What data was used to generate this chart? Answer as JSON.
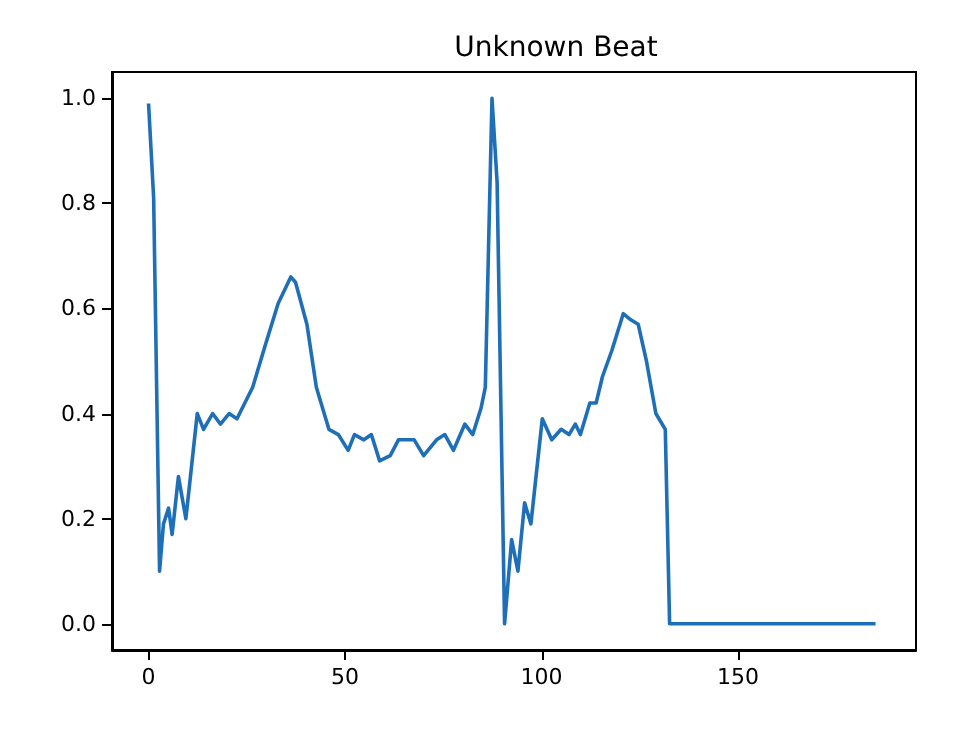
{
  "chart_data": {
    "type": "line",
    "title": "Unknown Beat",
    "x": [
      0,
      1.3,
      2.8,
      3.8,
      5.1,
      6,
      7.6,
      9.5,
      12.4,
      14,
      16.3,
      18.3,
      20.5,
      22.5,
      26.5,
      29.7,
      33,
      36.2,
      37.4,
      40.3,
      42.7,
      45.9,
      48.3,
      50.8,
      52.4,
      54.8,
      56.7,
      58.8,
      61.5,
      63.6,
      67.6,
      70,
      73.3,
      75.4,
      77.6,
      80.5,
      82.5,
      84.6,
      85.7,
      87.4,
      88.7,
      90.6,
      92.4,
      94,
      95.7,
      97.3,
      100.2,
      102.6,
      105,
      107,
      108.6,
      109.9,
      112.3,
      113.9,
      115.5,
      117.9,
      120.8,
      122.4,
      124.6,
      126.7,
      129.1,
      131.5,
      132.6,
      185
    ],
    "series": [
      {
        "color": "#1f6fb8",
        "values": [
          0.99,
          0.81,
          0.1,
          0.19,
          0.22,
          0.17,
          0.28,
          0.2,
          0.4,
          0.37,
          0.4,
          0.38,
          0.4,
          0.39,
          0.45,
          0.53,
          0.61,
          0.66,
          0.65,
          0.57,
          0.45,
          0.37,
          0.36,
          0.33,
          0.36,
          0.35,
          0.36,
          0.31,
          0.32,
          0.35,
          0.35,
          0.32,
          0.35,
          0.36,
          0.33,
          0.38,
          0.36,
          0.41,
          0.45,
          1.0,
          0.84,
          0.0,
          0.16,
          0.1,
          0.23,
          0.19,
          0.39,
          0.35,
          0.37,
          0.36,
          0.38,
          0.36,
          0.42,
          0.42,
          0.47,
          0.52,
          0.59,
          0.58,
          0.57,
          0.5,
          0.4,
          0.37,
          0.0,
          0.0
        ]
      }
    ],
    "xlim": [
      -9.3,
      195.3
    ],
    "ylim": [
      -0.05,
      1.05
    ],
    "xticks": [
      0,
      50,
      100,
      150
    ],
    "yticks": [
      {
        "value": 0,
        "label": "0.0"
      },
      0.2,
      0.4,
      0.6,
      0.8,
      {
        "value": 1,
        "label": "1.0"
      }
    ],
    "grid": false
  }
}
